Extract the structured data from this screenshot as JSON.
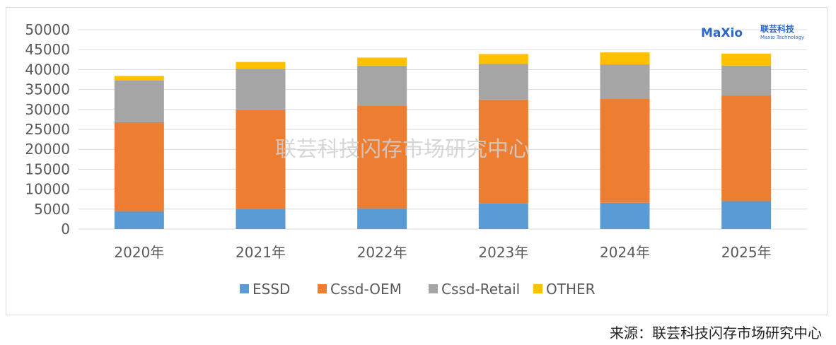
{
  "chart_data": {
    "type": "bar",
    "stacked": true,
    "categories": [
      "2020年",
      "2021年",
      "2022年",
      "2023年",
      "2024年",
      "2025年"
    ],
    "series": [
      {
        "name": "ESSD",
        "color": "#5b9bd5",
        "values": [
          4500,
          5000,
          5200,
          6400,
          6600,
          7000
        ]
      },
      {
        "name": "Cssd-OEM",
        "color": "#ed7d31",
        "values": [
          22300,
          24800,
          25800,
          26100,
          26100,
          26500
        ]
      },
      {
        "name": "Cssd-Retail",
        "color": "#a5a5a5",
        "values": [
          10500,
          10400,
          10000,
          8900,
          8600,
          7500
        ]
      },
      {
        "name": "OTHER",
        "color": "#ffc000",
        "values": [
          1100,
          1700,
          2000,
          2500,
          3000,
          3000
        ]
      }
    ],
    "ylim": [
      0,
      50000
    ],
    "yticks": [
      0,
      5000,
      10000,
      15000,
      20000,
      25000,
      30000,
      35000,
      40000,
      45000,
      50000
    ],
    "grid": true,
    "legend_position": "bottom"
  },
  "watermark": "联芸科技闪存市场研究中心",
  "logo": {
    "brand": "MaXio",
    "cn": "联芸科技",
    "en": "Maxio Technology"
  },
  "source": "来源：联芸科技闪存市场研究中心"
}
